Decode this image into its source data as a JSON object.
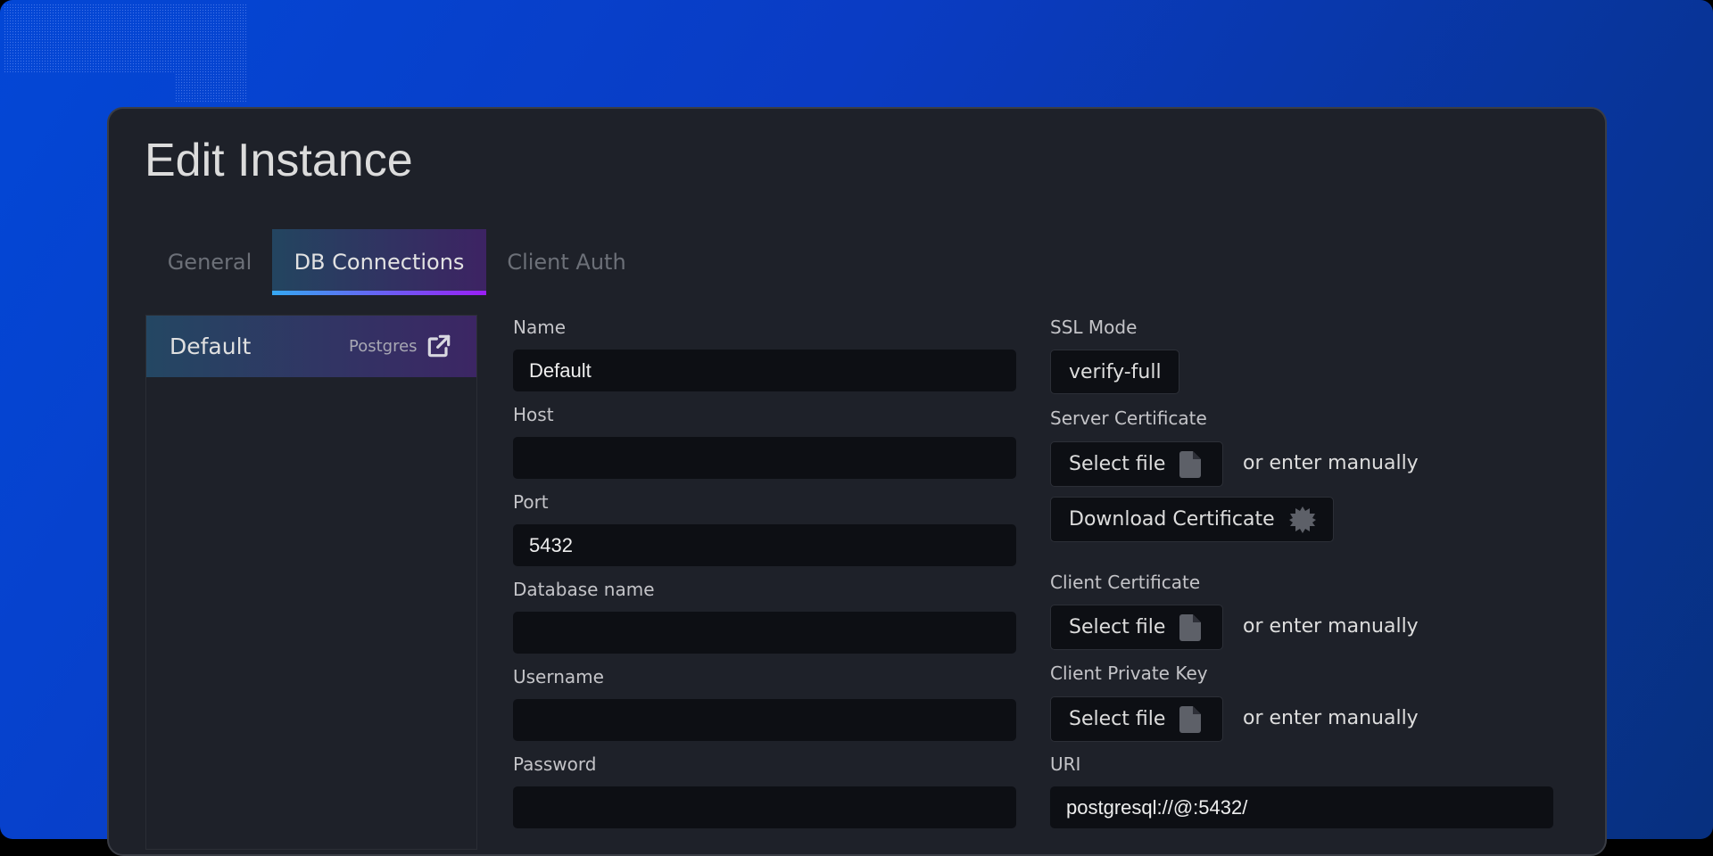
{
  "dialog": {
    "title": "Edit Instance"
  },
  "tabs": [
    {
      "label": "General"
    },
    {
      "label": "DB Connections",
      "active": true
    },
    {
      "label": "Client Auth"
    }
  ],
  "connections": [
    {
      "name": "Default",
      "type": "Postgres",
      "icon": "external-link-icon"
    }
  ],
  "form": {
    "name": {
      "label": "Name",
      "value": "Default"
    },
    "host": {
      "label": "Host",
      "value": ""
    },
    "port": {
      "label": "Port",
      "value": "5432"
    },
    "database": {
      "label": "Database name",
      "value": ""
    },
    "username": {
      "label": "Username",
      "value": ""
    },
    "password": {
      "label": "Password",
      "value": ""
    },
    "ssl_mode": {
      "label": "SSL Mode",
      "value": "verify-full"
    },
    "server_cert": {
      "label": "Server Certificate",
      "button": "Select file",
      "alt": "or enter manually"
    },
    "download_cert": {
      "label": "Download Certificate"
    },
    "client_cert": {
      "label": "Client Certificate",
      "button": "Select file",
      "alt": "or enter manually"
    },
    "client_key": {
      "label": "Client Private Key",
      "button": "Select file",
      "alt": "or enter manually"
    },
    "uri": {
      "label": "URI",
      "value": "postgresql://@:5432/"
    }
  },
  "colors": {
    "accent_start": "#35a8f2",
    "accent_end": "#9a1ef5",
    "background": "#0347d6",
    "panel": "#1e2129"
  }
}
